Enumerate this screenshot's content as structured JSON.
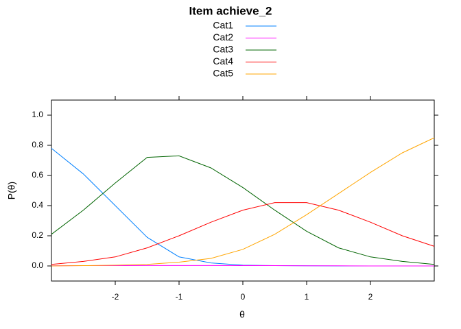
{
  "chart_data": {
    "type": "line",
    "title": "Item achieve_2",
    "x": [
      -3,
      -2.5,
      -2,
      -1.5,
      -1,
      -0.5,
      0,
      0.5,
      1,
      1.5,
      2,
      2.5,
      3
    ],
    "series": [
      {
        "name": "Cat1",
        "color": "#0080ff",
        "values": [
          0.78,
          0.61,
          0.4,
          0.19,
          0.06,
          0.02,
          0.005,
          0.002,
          0.001,
          0,
          0,
          0,
          0
        ]
      },
      {
        "name": "Cat2",
        "color": "#ff00ff",
        "values": [
          0.001,
          0.002,
          0.002,
          0.003,
          0.003,
          0.003,
          0.002,
          0.002,
          0.001,
          0.001,
          0,
          0,
          0
        ]
      },
      {
        "name": "Cat3",
        "color": "#006400",
        "values": [
          0.21,
          0.37,
          0.55,
          0.72,
          0.73,
          0.65,
          0.52,
          0.37,
          0.23,
          0.12,
          0.06,
          0.03,
          0.01
        ]
      },
      {
        "name": "Cat4",
        "color": "#ff0000",
        "values": [
          0.01,
          0.03,
          0.06,
          0.12,
          0.2,
          0.29,
          0.37,
          0.42,
          0.42,
          0.37,
          0.29,
          0.2,
          0.13
        ]
      },
      {
        "name": "Cat5",
        "color": "#ffa500",
        "values": [
          0,
          0.002,
          0.005,
          0.01,
          0.025,
          0.05,
          0.11,
          0.21,
          0.34,
          0.48,
          0.62,
          0.75,
          0.85
        ]
      }
    ],
    "xlabel": "θ",
    "ylabel": "P(θ)",
    "xlim": [
      -3,
      3
    ],
    "ylim": [
      -0.1,
      1.1
    ],
    "xticks": [
      -2,
      -1,
      0,
      1,
      2
    ],
    "yticks": [
      {
        "value": 0,
        "label": "0.0"
      },
      0.2,
      0.4,
      0.6,
      0.8,
      {
        "value": 1,
        "label": "1.0"
      }
    ],
    "legend": "top"
  }
}
